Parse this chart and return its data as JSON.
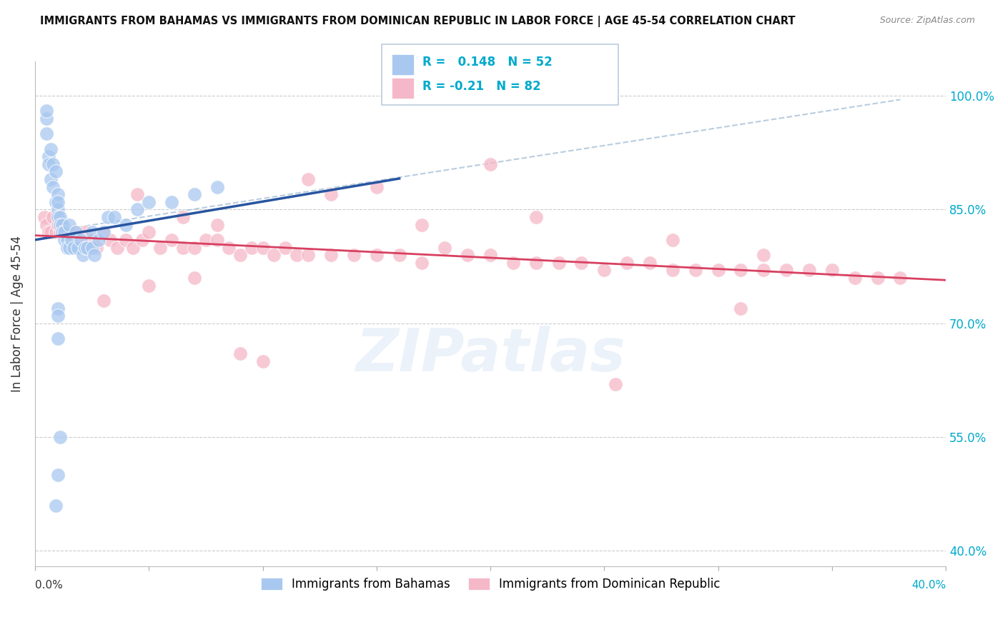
{
  "title": "IMMIGRANTS FROM BAHAMAS VS IMMIGRANTS FROM DOMINICAN REPUBLIC IN LABOR FORCE | AGE 45-54 CORRELATION CHART",
  "source": "Source: ZipAtlas.com",
  "ylabel": "In Labor Force | Age 45-54",
  "y_ticks": [
    0.4,
    0.55,
    0.7,
    0.85,
    1.0
  ],
  "y_tick_labels": [
    "40.0%",
    "55.0%",
    "70.0%",
    "85.0%",
    "100.0%"
  ],
  "x_range": [
    0.0,
    0.4
  ],
  "y_range": [
    0.38,
    1.045
  ],
  "R_bahamas": 0.148,
  "N_bahamas": 52,
  "R_dominican": -0.21,
  "N_dominican": 82,
  "color_bahamas": "#A8C8F0",
  "color_dominican": "#F5B8C8",
  "trend_bahamas": "#2855A0",
  "trend_dominican": "#D84060",
  "trend_dashed_color": "#A8C0D8",
  "legend_label_bahamas": "Immigrants from Bahamas",
  "legend_label_dominican": "Immigrants from Dominican Republic",
  "watermark": "ZIPatlas",
  "bahamas_x": [
    0.005,
    0.005,
    0.005,
    0.006,
    0.006,
    0.007,
    0.007,
    0.008,
    0.008,
    0.009,
    0.009,
    0.01,
    0.01,
    0.01,
    0.01,
    0.011,
    0.011,
    0.012,
    0.012,
    0.013,
    0.013,
    0.014,
    0.014,
    0.015,
    0.015,
    0.016,
    0.017,
    0.018,
    0.019,
    0.02,
    0.021,
    0.022,
    0.023,
    0.025,
    0.025,
    0.026,
    0.028,
    0.03,
    0.032,
    0.035,
    0.04,
    0.045,
    0.05,
    0.06,
    0.07,
    0.08,
    0.01,
    0.01,
    0.01,
    0.011,
    0.01,
    0.009
  ],
  "bahamas_y": [
    0.95,
    0.97,
    0.98,
    0.92,
    0.91,
    0.93,
    0.89,
    0.91,
    0.88,
    0.9,
    0.86,
    0.87,
    0.85,
    0.84,
    0.86,
    0.84,
    0.83,
    0.83,
    0.82,
    0.82,
    0.81,
    0.81,
    0.8,
    0.8,
    0.83,
    0.81,
    0.8,
    0.82,
    0.8,
    0.81,
    0.79,
    0.8,
    0.8,
    0.82,
    0.8,
    0.79,
    0.81,
    0.82,
    0.84,
    0.84,
    0.83,
    0.85,
    0.86,
    0.86,
    0.87,
    0.88,
    0.72,
    0.71,
    0.68,
    0.55,
    0.5,
    0.46
  ],
  "dominican_x": [
    0.004,
    0.005,
    0.006,
    0.007,
    0.008,
    0.009,
    0.01,
    0.011,
    0.012,
    0.013,
    0.015,
    0.016,
    0.018,
    0.02,
    0.022,
    0.025,
    0.027,
    0.03,
    0.033,
    0.036,
    0.04,
    0.043,
    0.047,
    0.05,
    0.055,
    0.06,
    0.065,
    0.07,
    0.075,
    0.08,
    0.085,
    0.09,
    0.095,
    0.1,
    0.105,
    0.11,
    0.115,
    0.12,
    0.13,
    0.14,
    0.15,
    0.16,
    0.17,
    0.18,
    0.19,
    0.2,
    0.21,
    0.22,
    0.23,
    0.24,
    0.25,
    0.26,
    0.27,
    0.28,
    0.29,
    0.3,
    0.31,
    0.32,
    0.33,
    0.34,
    0.35,
    0.36,
    0.37,
    0.38,
    0.05,
    0.08,
    0.12,
    0.03,
    0.065,
    0.1,
    0.15,
    0.2,
    0.255,
    0.31,
    0.07,
    0.13,
    0.22,
    0.32,
    0.045,
    0.09,
    0.17,
    0.28
  ],
  "dominican_y": [
    0.84,
    0.83,
    0.82,
    0.82,
    0.84,
    0.82,
    0.83,
    0.82,
    0.83,
    0.82,
    0.82,
    0.81,
    0.82,
    0.81,
    0.82,
    0.81,
    0.8,
    0.82,
    0.81,
    0.8,
    0.81,
    0.8,
    0.81,
    0.82,
    0.8,
    0.81,
    0.8,
    0.8,
    0.81,
    0.81,
    0.8,
    0.79,
    0.8,
    0.8,
    0.79,
    0.8,
    0.79,
    0.79,
    0.79,
    0.79,
    0.79,
    0.79,
    0.78,
    0.8,
    0.79,
    0.79,
    0.78,
    0.78,
    0.78,
    0.78,
    0.77,
    0.78,
    0.78,
    0.77,
    0.77,
    0.77,
    0.77,
    0.77,
    0.77,
    0.77,
    0.77,
    0.76,
    0.76,
    0.76,
    0.75,
    0.83,
    0.89,
    0.73,
    0.84,
    0.65,
    0.88,
    0.91,
    0.62,
    0.72,
    0.76,
    0.87,
    0.84,
    0.79,
    0.87,
    0.66,
    0.83,
    0.81
  ]
}
